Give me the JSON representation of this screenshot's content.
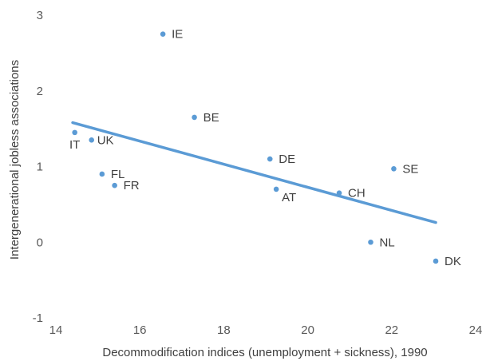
{
  "chart_data": {
    "type": "scatter",
    "title": "",
    "xlabel": "Decommodification indices (unemployment + sickness), 1990",
    "ylabel": "Intergenerational jobless associations",
    "xlim": [
      14,
      24
    ],
    "ylim": [
      -1,
      3
    ],
    "xticks": [
      14,
      16,
      18,
      20,
      22,
      24
    ],
    "yticks": [
      -1,
      0,
      1,
      2,
      3
    ],
    "grid": false,
    "legend": "none",
    "point_color": "#5b9bd5",
    "trend_color": "#5b9bd5",
    "points": [
      {
        "label": "IE",
        "x": 16.55,
        "y": 2.75
      },
      {
        "label": "BE",
        "x": 17.3,
        "y": 1.65
      },
      {
        "label": "IT",
        "x": 14.45,
        "y": 1.45
      },
      {
        "label": "UK",
        "x": 14.85,
        "y": 1.35
      },
      {
        "label": "DE",
        "x": 19.1,
        "y": 1.1
      },
      {
        "label": "SE",
        "x": 22.05,
        "y": 0.97
      },
      {
        "label": "FL",
        "x": 15.1,
        "y": 0.9
      },
      {
        "label": "FR",
        "x": 15.4,
        "y": 0.75
      },
      {
        "label": "AT",
        "x": 19.25,
        "y": 0.7
      },
      {
        "label": "CH",
        "x": 20.75,
        "y": 0.65
      },
      {
        "label": "NL",
        "x": 21.5,
        "y": 0.0
      },
      {
        "label": "DK",
        "x": 23.05,
        "y": -0.25
      }
    ],
    "trendline": {
      "x": [
        14.4,
        23.05
      ],
      "y": [
        1.58,
        0.26
      ]
    }
  }
}
